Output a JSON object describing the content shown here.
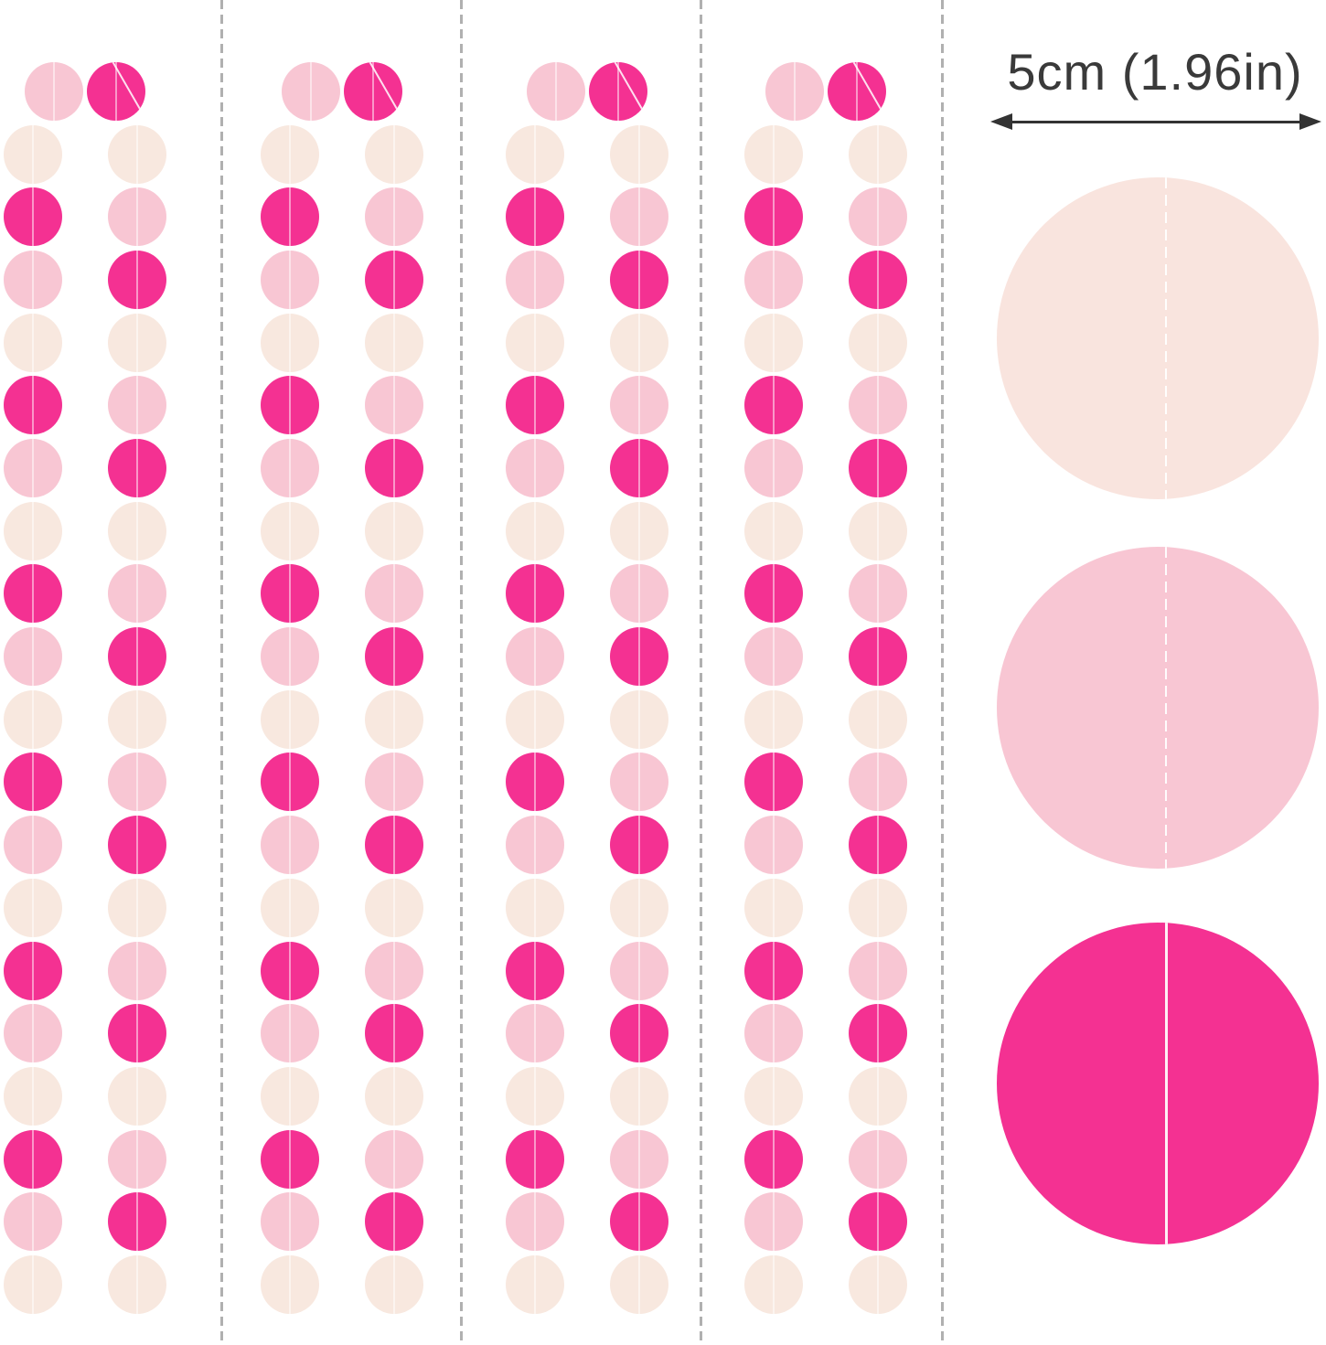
{
  "product_display": {
    "description": "circle-dot paper garland product image",
    "background": "#ffffff"
  },
  "palette": {
    "hot_pink": "#f43192",
    "light_pink": "#f8c6d3",
    "blush": "#f8e8df",
    "swatch_blush": "#f9e4de",
    "thread_white": "#ffffff",
    "cut_line_gray": "#b0b0b0",
    "text_dark": "#3a3a3a",
    "arrow_dark": "#333333"
  },
  "cut_lines": {
    "count": 4,
    "style": "dashed",
    "color": "#b0b0b0"
  },
  "garlands": {
    "column_count": 4,
    "rows_per_strand": 20,
    "top_row": {
      "left": "light_pink",
      "right": "hot_pink"
    },
    "left_strand_cycle": [
      "light_pink",
      "blush",
      "hot_pink"
    ],
    "right_strand_cycle": [
      "hot_pink",
      "blush",
      "light_pink"
    ]
  },
  "size_guide": {
    "label": "5cm (1.96in)",
    "arrow_icon": "double-headed-horizontal-arrow",
    "swatches": [
      {
        "name": "blush-circle",
        "color_key": "swatch_blush",
        "stitch": "dashed-thread"
      },
      {
        "name": "light-pink-circle",
        "color_key": "light_pink",
        "stitch": "dashed-thread"
      },
      {
        "name": "hot-pink-circle",
        "color_key": "hot_pink",
        "stitch": "solid-thread"
      }
    ]
  }
}
